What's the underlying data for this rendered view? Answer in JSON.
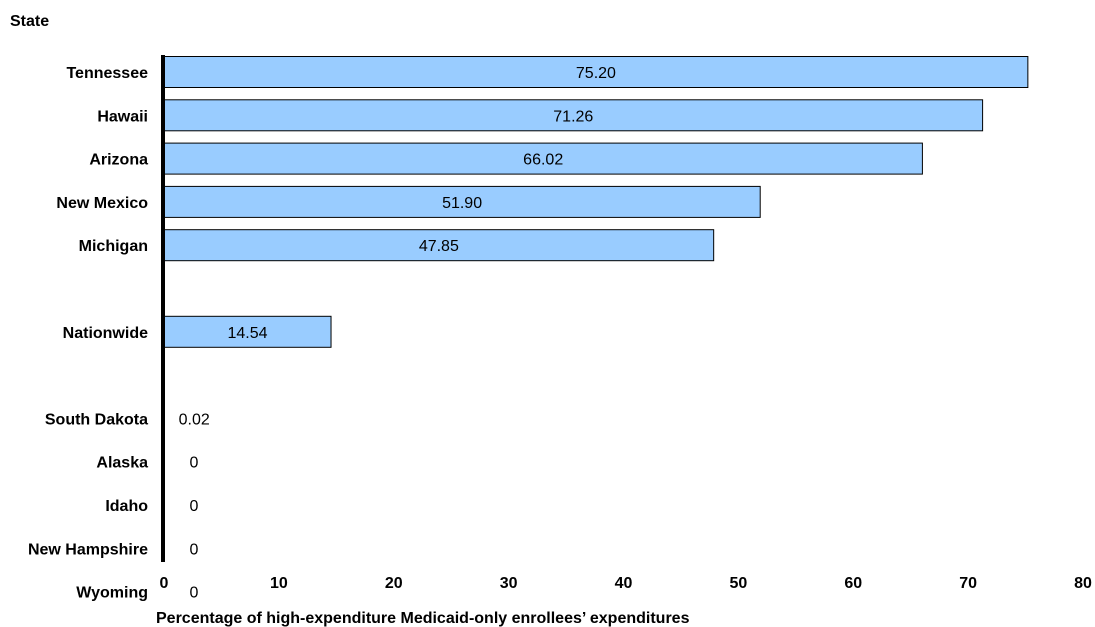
{
  "chart_data": {
    "type": "bar",
    "orientation": "horizontal",
    "y_axis_title": "State",
    "xlabel": "Percentage of high-expenditure Medicaid-only enrollees’ expenditures",
    "xlim": [
      0,
      80
    ],
    "xticks": [
      "0",
      "10",
      "20",
      "30",
      "40",
      "50",
      "60",
      "70",
      "80"
    ],
    "grid": false,
    "bar_color": "#99CCFF",
    "categories": [
      "Tennessee",
      "Hawaii",
      "Arizona",
      "New Mexico",
      "Michigan",
      "",
      "Nationwide",
      "",
      "South Dakota",
      "Alaska",
      "Idaho",
      "New Hampshire",
      "Wyoming"
    ],
    "values": [
      75.2,
      71.26,
      66.02,
      51.9,
      47.85,
      null,
      14.54,
      null,
      0.02,
      0,
      0,
      0,
      0
    ],
    "value_labels": [
      "75.20",
      "71.26",
      "66.02",
      "51.90",
      "47.85",
      "",
      "14.54",
      "",
      "0.02",
      "0",
      "0",
      "0",
      "0"
    ]
  }
}
